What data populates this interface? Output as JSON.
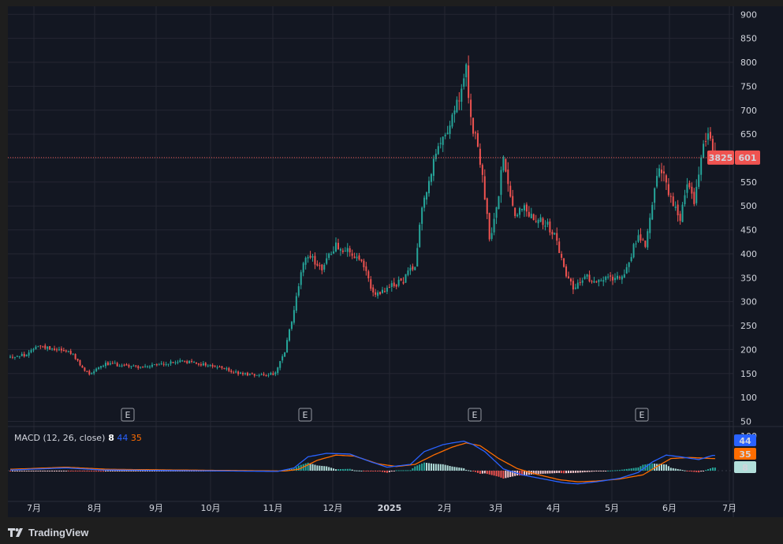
{
  "brand": "TradingView",
  "colors": {
    "background": "#131722",
    "grid": "#242733",
    "text": "#d1d4dc",
    "up": "#26a69a",
    "down": "#ef5350",
    "macd": "#2962ff",
    "signal": "#ff6d00",
    "price_line": "#ef5350"
  },
  "badges": {
    "price_count": "3825",
    "price": "601",
    "macd": "44",
    "signal": "35",
    "hist": "8"
  },
  "macd_legend": {
    "name": "MACD (12, 26, close)",
    "hist": "8",
    "macd": "44",
    "signal": "35"
  },
  "events": [
    "E",
    "E",
    "E",
    "E"
  ],
  "chart_data": [
    {
      "type": "candlestick",
      "title": "",
      "ylim": [
        50,
        900
      ],
      "yticks": [
        50,
        100,
        150,
        200,
        250,
        300,
        350,
        400,
        450,
        500,
        550,
        600,
        650,
        700,
        750,
        800,
        850,
        900
      ],
      "xticks": [
        "7月",
        "8月",
        "9月",
        "10月",
        "11月",
        "12月",
        "2025",
        "2月",
        "3月",
        "4月",
        "5月",
        "6月",
        "7月"
      ],
      "last_price": 601,
      "anchors": [
        [
          0,
          185
        ],
        [
          8,
          190
        ],
        [
          11,
          210
        ],
        [
          14,
          205
        ],
        [
          20,
          202
        ],
        [
          26,
          195
        ],
        [
          31,
          160
        ],
        [
          34,
          150
        ],
        [
          40,
          170
        ],
        [
          48,
          168
        ],
        [
          58,
          163
        ],
        [
          66,
          170
        ],
        [
          74,
          176
        ],
        [
          82,
          170
        ],
        [
          90,
          163
        ],
        [
          98,
          150
        ],
        [
          106,
          148
        ],
        [
          114,
          150
        ],
        [
          118,
          195
        ],
        [
          121,
          260
        ],
        [
          125,
          360
        ],
        [
          128,
          400
        ],
        [
          134,
          370
        ],
        [
          140,
          420
        ],
        [
          145,
          405
        ],
        [
          151,
          380
        ],
        [
          157,
          310
        ],
        [
          163,
          330
        ],
        [
          169,
          345
        ],
        [
          174,
          380
        ],
        [
          177,
          500
        ],
        [
          182,
          590
        ],
        [
          186,
          640
        ],
        [
          190,
          690
        ],
        [
          193,
          720
        ],
        [
          196,
          780
        ],
        [
          198,
          680
        ],
        [
          201,
          620
        ],
        [
          204,
          520
        ],
        [
          206,
          430
        ],
        [
          209,
          490
        ],
        [
          212,
          600
        ],
        [
          214,
          550
        ],
        [
          217,
          480
        ],
        [
          220,
          500
        ],
        [
          223,
          485
        ],
        [
          229,
          470
        ],
        [
          234,
          440
        ],
        [
          238,
          370
        ],
        [
          242,
          330
        ],
        [
          248,
          350
        ],
        [
          253,
          345
        ],
        [
          258,
          350
        ],
        [
          264,
          360
        ],
        [
          270,
          440
        ],
        [
          273,
          420
        ],
        [
          276,
          510
        ],
        [
          279,
          590
        ],
        [
          282,
          540
        ],
        [
          285,
          500
        ],
        [
          288,
          470
        ],
        [
          291,
          550
        ],
        [
          294,
          510
        ],
        [
          298,
          620
        ],
        [
          301,
          650
        ],
        [
          303,
          601
        ]
      ]
    },
    {
      "type": "macd",
      "params": "(12, 26, close)",
      "ylim": [
        -45,
        100
      ],
      "yticks": [
        100
      ],
      "macd_anchors": [
        [
          0,
          2
        ],
        [
          24,
          8
        ],
        [
          40,
          2
        ],
        [
          115,
          -2
        ],
        [
          122,
          8
        ],
        [
          128,
          40
        ],
        [
          136,
          50
        ],
        [
          146,
          48
        ],
        [
          154,
          28
        ],
        [
          162,
          10
        ],
        [
          172,
          18
        ],
        [
          178,
          55
        ],
        [
          186,
          75
        ],
        [
          190,
          80
        ],
        [
          195,
          85
        ],
        [
          199,
          75
        ],
        [
          204,
          55
        ],
        [
          212,
          5
        ],
        [
          220,
          -12
        ],
        [
          230,
          -25
        ],
        [
          238,
          -35
        ],
        [
          244,
          -38
        ],
        [
          252,
          -32
        ],
        [
          262,
          -22
        ],
        [
          270,
          -5
        ],
        [
          276,
          25
        ],
        [
          282,
          45
        ],
        [
          288,
          40
        ],
        [
          296,
          32
        ],
        [
          302,
          44
        ]
      ],
      "signal_anchors": [
        [
          0,
          4
        ],
        [
          24,
          10
        ],
        [
          42,
          4
        ],
        [
          118,
          -1
        ],
        [
          124,
          4
        ],
        [
          132,
          30
        ],
        [
          140,
          45
        ],
        [
          148,
          42
        ],
        [
          158,
          20
        ],
        [
          166,
          12
        ],
        [
          174,
          18
        ],
        [
          182,
          45
        ],
        [
          190,
          68
        ],
        [
          196,
          80
        ],
        [
          202,
          72
        ],
        [
          210,
          35
        ],
        [
          218,
          6
        ],
        [
          226,
          -10
        ],
        [
          236,
          -26
        ],
        [
          244,
          -32
        ],
        [
          252,
          -30
        ],
        [
          262,
          -24
        ],
        [
          272,
          -12
        ],
        [
          278,
          12
        ],
        [
          284,
          35
        ],
        [
          292,
          38
        ],
        [
          302,
          35
        ]
      ]
    }
  ]
}
